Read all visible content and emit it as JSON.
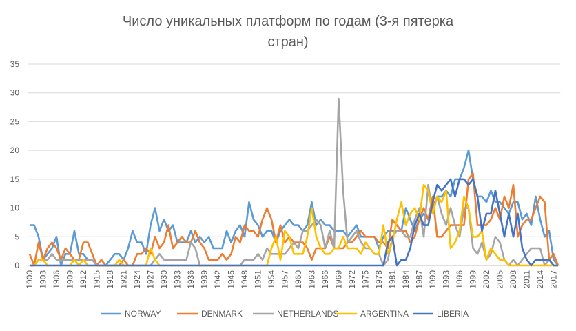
{
  "chart_data": {
    "type": "line",
    "title": "Число уникальных платформ по годам (3-я пятерка стран)",
    "title_lines": [
      "Число уникальных платформ по годам (3-я пятерка",
      "стран)"
    ],
    "xlabel": "",
    "ylabel": "",
    "ylim": [
      0,
      35
    ],
    "y_ticks": [
      0,
      5,
      10,
      15,
      20,
      25,
      30,
      35
    ],
    "grid": "horizontal",
    "legend_position": "bottom",
    "x_start": 1900,
    "x_end": 2018,
    "x_tick_labels": [
      "1900",
      "1903",
      "1906",
      "1909",
      "1912",
      "1915",
      "1918",
      "1921",
      "1924",
      "1927",
      "1930",
      "1933",
      "1936",
      "1939",
      "1942",
      "1945",
      "1948",
      "1951",
      "1954",
      "1957",
      "1960",
      "1963",
      "1966",
      "1969",
      "1972",
      "1975",
      "1978",
      "1981",
      "1984",
      "1987",
      "1990",
      "1993",
      "1996",
      "1999",
      "2002",
      "2005",
      "2008",
      "2011",
      "2014",
      "2017"
    ],
    "series": [
      {
        "name": "NORWAY",
        "color": "#5B9BD5",
        "values": [
          7,
          7,
          5,
          1,
          2,
          3,
          5,
          0,
          2,
          2,
          6,
          2,
          2,
          1,
          1,
          0,
          0,
          0,
          1,
          2,
          2,
          1,
          3,
          6,
          4,
          4,
          2,
          7,
          10,
          6,
          8,
          6,
          7,
          4,
          4,
          4,
          6,
          4,
          5,
          4,
          5,
          3,
          3,
          3,
          6,
          4,
          6,
          7,
          5,
          11,
          8,
          7,
          5,
          6,
          6,
          4,
          6,
          7,
          8,
          7,
          7,
          6,
          7,
          11,
          7,
          8,
          7,
          7,
          6,
          6,
          6,
          5,
          6,
          7,
          5,
          5,
          5,
          5,
          3,
          5,
          6,
          6,
          6,
          6,
          10,
          8,
          6,
          8,
          9,
          8,
          10,
          12,
          12,
          13,
          12,
          15,
          15,
          17,
          20,
          15,
          12,
          12,
          11,
          13,
          11,
          11,
          10,
          9,
          11,
          11,
          8,
          9,
          7,
          12,
          8,
          5,
          6,
          1,
          0
        ]
      },
      {
        "name": "DENMARK",
        "color": "#ED7D31",
        "values": [
          2,
          0,
          4,
          1,
          3,
          4,
          3,
          1,
          3,
          2,
          1,
          1,
          4,
          4,
          2,
          0,
          1,
          0,
          0,
          0,
          0,
          1,
          0,
          0,
          2,
          2,
          3,
          2,
          5,
          3,
          4,
          7,
          3,
          4,
          5,
          4,
          4,
          6,
          4,
          3,
          1,
          1,
          1,
          2,
          1,
          2,
          5,
          4,
          7,
          6,
          6,
          5,
          8,
          10,
          8,
          4,
          7,
          4,
          5,
          4,
          4,
          4,
          3,
          1,
          3,
          3,
          3,
          5,
          3,
          3,
          3,
          4,
          4,
          5,
          6,
          5,
          5,
          5,
          4,
          4,
          3,
          8,
          7,
          6,
          6,
          4,
          5,
          8,
          10,
          8,
          12,
          5,
          5,
          6,
          7,
          7,
          7,
          7,
          15,
          16,
          7,
          7,
          7,
          8,
          10,
          8,
          12,
          10,
          14,
          5,
          7,
          8,
          8,
          10,
          12,
          11,
          1,
          2,
          0
        ]
      },
      {
        "name": "NETHERLANDS",
        "color": "#A5A5A5",
        "values": [
          0,
          0,
          1,
          1,
          1,
          2,
          1,
          1,
          1,
          1,
          1,
          1,
          1,
          1,
          1,
          0,
          0,
          0,
          0,
          0,
          0,
          0,
          0,
          0,
          0,
          0,
          0,
          0,
          1,
          2,
          1,
          1,
          1,
          1,
          1,
          1,
          4,
          3,
          0,
          0,
          0,
          0,
          0,
          0,
          0,
          0,
          0,
          0,
          1,
          1,
          1,
          2,
          1,
          3,
          2,
          2,
          2,
          2,
          3,
          4,
          3,
          6,
          6,
          7,
          8,
          7,
          3,
          6,
          3,
          29,
          13,
          4,
          5,
          6,
          4,
          3,
          3,
          2,
          2,
          0,
          1,
          5,
          6,
          6,
          5,
          5,
          8,
          10,
          5,
          14,
          9,
          12,
          9,
          7,
          10,
          7,
          5,
          10,
          10,
          3,
          2,
          4,
          1,
          2,
          5,
          4,
          1,
          0,
          1,
          0,
          1,
          2,
          3,
          3,
          3,
          0,
          1,
          0,
          0
        ]
      },
      {
        "name": "ARGENTINA",
        "color": "#FFC000",
        "values": [
          0,
          0,
          1,
          1,
          0,
          0,
          0,
          0,
          0,
          0,
          1,
          0,
          1,
          0,
          0,
          0,
          0,
          0,
          0,
          0,
          1,
          0,
          0,
          0,
          0,
          0,
          0,
          3,
          1,
          0,
          0,
          0,
          0,
          0,
          0,
          0,
          0,
          0,
          0,
          0,
          0,
          0,
          0,
          0,
          0,
          0,
          0,
          0,
          0,
          0,
          0,
          0,
          0,
          0,
          3,
          5,
          1,
          6,
          5,
          2,
          2,
          2,
          5,
          10,
          5,
          3,
          2,
          2,
          3,
          3,
          5,
          3,
          3,
          3,
          2,
          4,
          3,
          2,
          2,
          7,
          2,
          4,
          8,
          11,
          7,
          9,
          10,
          8,
          14,
          13,
          9,
          12,
          11,
          13,
          3,
          4,
          6,
          12,
          10,
          5,
          5,
          6,
          1,
          3,
          2,
          1,
          1,
          0,
          0,
          0,
          0,
          0,
          0,
          0,
          0,
          0,
          0,
          0,
          0
        ]
      },
      {
        "name": "LIBERIA",
        "color": "#4472C4",
        "values": [
          0,
          0,
          0,
          0,
          0,
          0,
          0,
          0,
          0,
          0,
          0,
          0,
          0,
          0,
          0,
          0,
          0,
          0,
          0,
          0,
          0,
          0,
          0,
          0,
          0,
          0,
          0,
          0,
          0,
          0,
          0,
          0,
          0,
          0,
          0,
          0,
          0,
          0,
          0,
          0,
          0,
          0,
          0,
          0,
          0,
          0,
          0,
          0,
          0,
          0,
          0,
          0,
          0,
          0,
          0,
          0,
          0,
          0,
          0,
          0,
          0,
          0,
          0,
          0,
          0,
          0,
          0,
          0,
          0,
          0,
          0,
          0,
          0,
          0,
          0,
          0,
          0,
          0,
          0,
          0,
          4,
          5,
          0,
          1,
          1,
          3,
          7,
          9,
          7,
          7,
          11,
          14,
          13,
          14,
          15,
          12,
          15,
          15,
          14,
          15,
          12,
          6,
          9,
          9,
          13,
          9,
          5,
          9,
          5,
          9,
          3,
          1,
          0,
          1,
          1,
          1,
          1,
          0,
          0
        ]
      }
    ]
  }
}
